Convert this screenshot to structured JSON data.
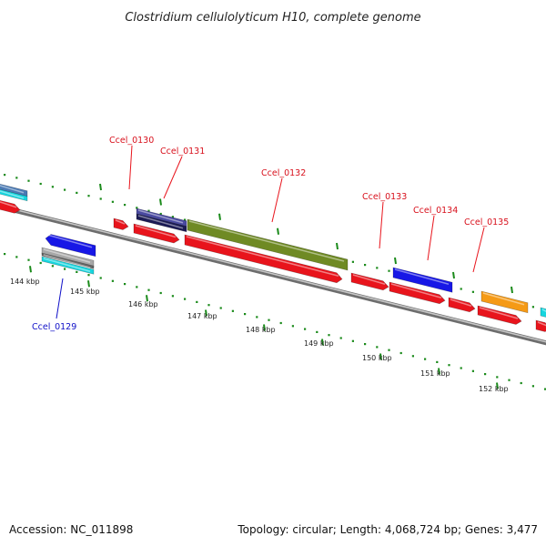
{
  "title": "Clostridium cellulolyticum H10, complete genome",
  "footer": {
    "accession": "Accession: NC_011898",
    "summary": "Topology: circular; Length: 4,068,724 bp; Genes: 3,477"
  },
  "colors": {
    "backbone": "#8a8a8a",
    "red": "#e8141c",
    "blue": "#1717e6",
    "navy": "#2a2a78",
    "olive": "#6f8a24",
    "orange": "#f59a16",
    "cyan": "#17d6df",
    "steel": "#4a7ab5",
    "gray": "#a7a7a7",
    "tick": "#1a8a1a",
    "label_red": "#d8101c",
    "label_blue": "#1010c8"
  },
  "ticks": {
    "kbp_labels": [
      "144 kbp",
      "145 kbp",
      "146 kbp",
      "147 kbp",
      "148 kbp",
      "149 kbp",
      "150 kbp",
      "151 kbp",
      "152 kbp"
    ]
  },
  "gene_labels": {
    "upper": [
      "Ccel_0130",
      "Ccel_0131",
      "Ccel_0132",
      "Ccel_0133",
      "Ccel_0134",
      "Ccel_0135"
    ],
    "lower": [
      "Ccel_0129"
    ]
  }
}
